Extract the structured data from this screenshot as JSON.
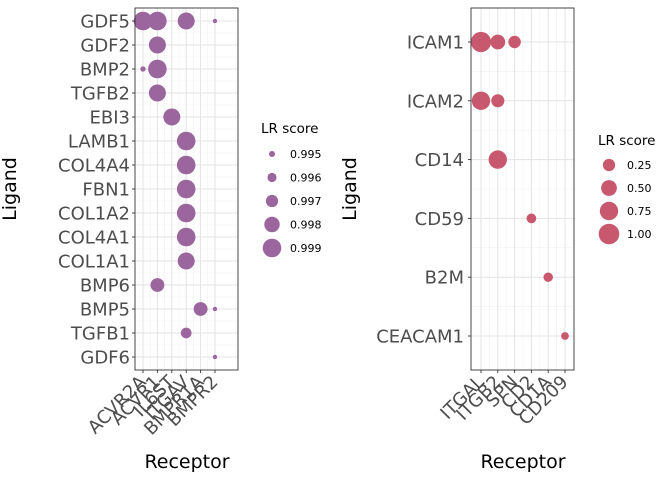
{
  "chart_data": [
    {
      "type": "scatter",
      "xlabel": "Receptor",
      "ylabel": "Ligand",
      "x_categories": [
        "ACVR2A",
        "ACVR1",
        "IL6ST",
        "ITGAV",
        "BMPR1A",
        "BMPR2"
      ],
      "y_categories": [
        "GDF5",
        "GDF2",
        "BMP2",
        "TGFB2",
        "EBI3",
        "LAMB1",
        "COL4A4",
        "FBN1",
        "COL1A2",
        "COL4A1",
        "COL1A1",
        "BMP6",
        "BMP5",
        "TGFB1",
        "GDF6"
      ],
      "color": "#9b659e",
      "points": [
        {
          "x": "ACVR2A",
          "y": "GDF5",
          "value": 0.999
        },
        {
          "x": "ACVR1",
          "y": "GDF5",
          "value": 0.999
        },
        {
          "x": "ITGAV",
          "y": "GDF5",
          "value": 0.9985
        },
        {
          "x": "BMPR2",
          "y": "GDF5",
          "value": 0.9945
        },
        {
          "x": "ACVR1",
          "y": "GDF2",
          "value": 0.9985
        },
        {
          "x": "ACVR2A",
          "y": "BMP2",
          "value": 0.9948
        },
        {
          "x": "ACVR1",
          "y": "BMP2",
          "value": 0.999
        },
        {
          "x": "ACVR1",
          "y": "TGFB2",
          "value": 0.9985
        },
        {
          "x": "IL6ST",
          "y": "EBI3",
          "value": 0.9985
        },
        {
          "x": "ITGAV",
          "y": "LAMB1",
          "value": 0.999
        },
        {
          "x": "ITGAV",
          "y": "COL4A4",
          "value": 0.999
        },
        {
          "x": "ITGAV",
          "y": "FBN1",
          "value": 0.999
        },
        {
          "x": "ITGAV",
          "y": "COL1A2",
          "value": 0.999
        },
        {
          "x": "ITGAV",
          "y": "COL4A1",
          "value": 0.999
        },
        {
          "x": "ITGAV",
          "y": "COL1A1",
          "value": 0.9985
        },
        {
          "x": "ACVR1",
          "y": "BMP6",
          "value": 0.9975
        },
        {
          "x": "BMPR1A",
          "y": "BMP5",
          "value": 0.9975
        },
        {
          "x": "BMPR2",
          "y": "BMP5",
          "value": 0.9945
        },
        {
          "x": "ITGAV",
          "y": "TGFB1",
          "value": 0.9965
        },
        {
          "x": "BMPR2",
          "y": "GDF6",
          "value": 0.9945
        }
      ],
      "legend": {
        "title": "LR score",
        "position": "right",
        "entries": [
          "0.995",
          "0.996",
          "0.997",
          "0.998",
          "0.999"
        ],
        "values": [
          0.995,
          0.996,
          0.997,
          0.998,
          0.999
        ]
      },
      "grid": true
    },
    {
      "type": "scatter",
      "xlabel": "Receptor",
      "ylabel": "Ligand",
      "x_categories": [
        "ITGAL",
        "ITGB2",
        "SPN",
        "CD2",
        "CD1A",
        "CD209"
      ],
      "y_categories": [
        "ICAM1",
        "ICAM2",
        "CD14",
        "CD59",
        "B2M",
        "CEACAM1"
      ],
      "color": "#c8586e",
      "points": [
        {
          "x": "ITGAL",
          "y": "ICAM1",
          "value": 0.95
        },
        {
          "x": "ITGB2",
          "y": "ICAM1",
          "value": 0.42
        },
        {
          "x": "SPN",
          "y": "ICAM1",
          "value": 0.26
        },
        {
          "x": "ITGAL",
          "y": "ICAM2",
          "value": 0.75
        },
        {
          "x": "ITGB2",
          "y": "ICAM2",
          "value": 0.3
        },
        {
          "x": "ITGB2",
          "y": "CD14",
          "value": 0.75
        },
        {
          "x": "CD2",
          "y": "CD59",
          "value": 0.12
        },
        {
          "x": "CD1A",
          "y": "B2M",
          "value": 0.11
        },
        {
          "x": "CD209",
          "y": "CEACAM1",
          "value": 0.05
        }
      ],
      "legend": {
        "title": "LR score",
        "position": "right",
        "entries": [
          "0.25",
          "0.50",
          "0.75",
          "1.00"
        ],
        "values": [
          0.25,
          0.5,
          0.75,
          1.0
        ]
      },
      "grid": true
    }
  ]
}
